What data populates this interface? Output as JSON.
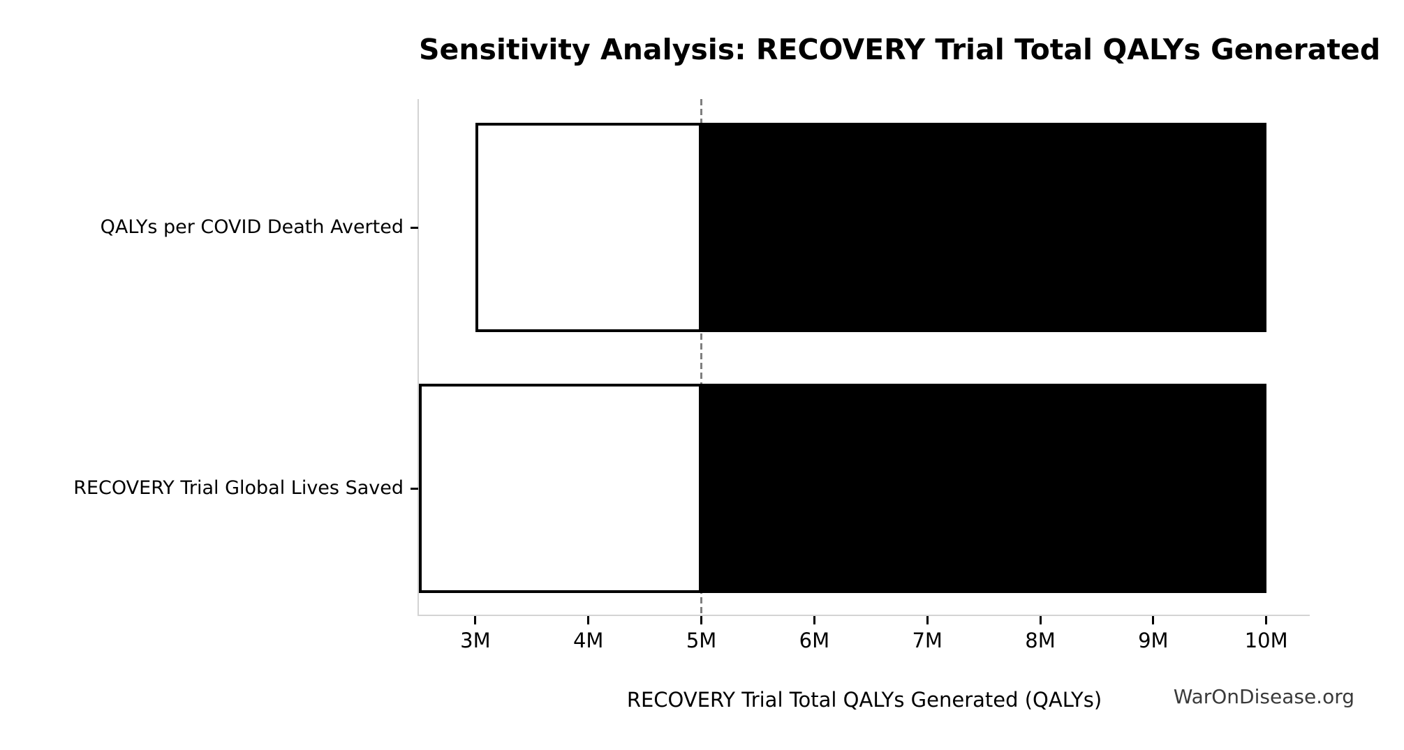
{
  "figure": {
    "title": "Sensitivity Analysis: RECOVERY Trial Total QALYs Generated",
    "watermark": "WarOnDisease.org"
  },
  "chart_data": {
    "type": "bar",
    "subtype": "tornado-sensitivity",
    "orientation": "horizontal",
    "title": "Sensitivity Analysis: RECOVERY Trial Total QALYs Generated",
    "xlabel": "RECOVERY Trial Total QALYs Generated (QALYs)",
    "ylabel": "",
    "categories": [
      "QALYs per COVID Death Averted",
      "RECOVERY Trial Global Lives Saved"
    ],
    "bars": [
      {
        "label": "QALYs per COVID Death Averted",
        "low": 3000000,
        "high": 10000000
      },
      {
        "label": "RECOVERY Trial Global Lives Saved",
        "low": 2500000,
        "high": 10000000
      }
    ],
    "baseline": 5000000,
    "x_ticks": [
      {
        "value": 3000000,
        "label": "3M"
      },
      {
        "value": 4000000,
        "label": "4M"
      },
      {
        "value": 5000000,
        "label": "5M"
      },
      {
        "value": 6000000,
        "label": "6M"
      },
      {
        "value": 7000000,
        "label": "7M"
      },
      {
        "value": 8000000,
        "label": "8M"
      },
      {
        "value": 9000000,
        "label": "9M"
      },
      {
        "value": 10000000,
        "label": "10M"
      }
    ],
    "xlim": [
      2500000,
      10385000
    ],
    "grid": false,
    "legend": null,
    "colors": {
      "high_segment_fill": "#000000",
      "low_segment_fill": "#ffffff",
      "bar_edge": "#000000",
      "baseline_line": "#7f7f7f",
      "spine": "#d3d3d3",
      "tick": "#000000",
      "text": "#000000",
      "watermark": "#3a3a3a"
    }
  }
}
